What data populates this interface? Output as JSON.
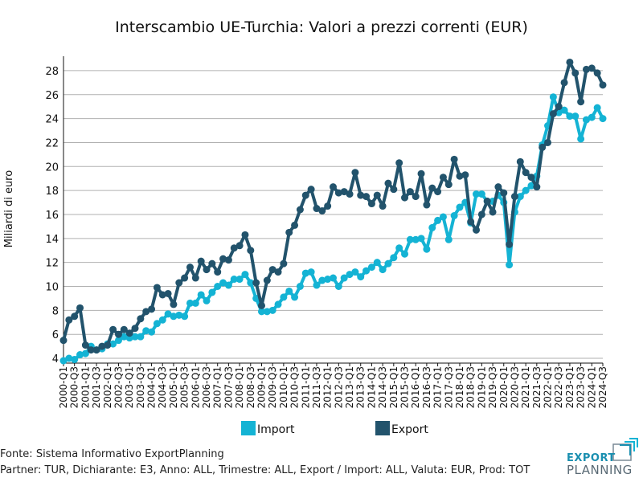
{
  "chart_data": {
    "type": "line",
    "title": "Interscambio UE-Turchia: Valori a prezzi correnti (EUR)",
    "xlabel": "",
    "ylabel": "Miliardi di euro",
    "ylim": [
      3.6,
      29.2
    ],
    "yticks": [
      4,
      6,
      8,
      10,
      12,
      14,
      16,
      18,
      20,
      22,
      24,
      26,
      28
    ],
    "grid": true,
    "legend_position": "bottom-center",
    "tick_every": 2,
    "x": [
      "2000-Q1",
      "2000-Q2",
      "2000-Q3",
      "2000-Q4",
      "2001-Q1",
      "2001-Q2",
      "2001-Q3",
      "2001-Q4",
      "2002-Q1",
      "2002-Q2",
      "2002-Q3",
      "2002-Q4",
      "2003-Q1",
      "2003-Q2",
      "2003-Q3",
      "2003-Q4",
      "2004-Q1",
      "2004-Q2",
      "2004-Q3",
      "2004-Q4",
      "2005-Q1",
      "2005-Q2",
      "2005-Q3",
      "2005-Q4",
      "2006-Q1",
      "2006-Q2",
      "2006-Q3",
      "2006-Q4",
      "2007-Q1",
      "2007-Q2",
      "2007-Q3",
      "2007-Q4",
      "2008-Q1",
      "2008-Q2",
      "2008-Q3",
      "2008-Q4",
      "2009-Q1",
      "2009-Q2",
      "2009-Q3",
      "2009-Q4",
      "2010-Q1",
      "2010-Q2",
      "2010-Q3",
      "2010-Q4",
      "2011-Q1",
      "2011-Q2",
      "2011-Q3",
      "2011-Q4",
      "2012-Q1",
      "2012-Q2",
      "2012-Q3",
      "2012-Q4",
      "2013-Q1",
      "2013-Q2",
      "2013-Q3",
      "2013-Q4",
      "2014-Q1",
      "2014-Q2",
      "2014-Q3",
      "2014-Q4",
      "2015-Q1",
      "2015-Q2",
      "2015-Q3",
      "2015-Q4",
      "2016-Q1",
      "2016-Q2",
      "2016-Q3",
      "2016-Q4",
      "2017-Q1",
      "2017-Q2",
      "2017-Q3",
      "2017-Q4",
      "2018-Q1",
      "2018-Q2",
      "2018-Q3",
      "2018-Q4",
      "2019-Q1",
      "2019-Q2",
      "2019-Q3",
      "2019-Q4",
      "2020-Q1",
      "2020-Q2",
      "2020-Q3",
      "2020-Q4",
      "2021-Q1",
      "2021-Q2",
      "2021-Q3",
      "2021-Q4",
      "2022-Q1",
      "2022-Q2",
      "2022-Q3",
      "2022-Q4",
      "2023-Q1",
      "2023-Q2",
      "2023-Q3",
      "2023-Q4",
      "2024-Q1",
      "2024-Q2",
      "2024-Q3"
    ],
    "series": [
      {
        "name": "Import",
        "color": "#14b3d4",
        "values": [
          3.8,
          4.0,
          3.9,
          4.3,
          4.4,
          5.0,
          4.7,
          4.8,
          5.2,
          5.2,
          5.5,
          5.8,
          5.7,
          5.8,
          5.8,
          6.3,
          6.2,
          6.9,
          7.2,
          7.7,
          7.5,
          7.6,
          7.5,
          8.6,
          8.6,
          9.3,
          8.8,
          9.5,
          10.0,
          10.3,
          10.1,
          10.6,
          10.6,
          11.0,
          10.3,
          9.0,
          7.9,
          7.9,
          8.0,
          8.5,
          9.1,
          9.6,
          9.1,
          10.0,
          11.1,
          11.2,
          10.1,
          10.5,
          10.6,
          10.7,
          10.0,
          10.7,
          11.0,
          11.2,
          10.8,
          11.3,
          11.6,
          12.0,
          11.4,
          11.9,
          12.4,
          13.2,
          12.7,
          13.9,
          13.9,
          14.0,
          13.1,
          14.9,
          15.5,
          15.8,
          13.9,
          15.9,
          16.6,
          17.0,
          15.3,
          17.7,
          17.7,
          17.1,
          17.1,
          17.6,
          17.0,
          11.8,
          16.2,
          17.5,
          18.0,
          18.4,
          19.2,
          21.8,
          23.4,
          25.8,
          24.5,
          24.7,
          24.2,
          24.2,
          22.3,
          23.9,
          24.1,
          24.9,
          24.0
        ]
      },
      {
        "name": "Export",
        "color": "#22536c",
        "values": [
          5.5,
          7.2,
          7.5,
          8.2,
          5.1,
          4.7,
          4.7,
          5.0,
          5.1,
          6.4,
          6.0,
          6.4,
          6.1,
          6.5,
          7.3,
          7.9,
          8.1,
          9.9,
          9.3,
          9.4,
          8.5,
          10.3,
          10.7,
          11.6,
          10.7,
          12.1,
          11.4,
          11.9,
          11.2,
          12.3,
          12.2,
          13.2,
          13.4,
          14.3,
          13.0,
          10.3,
          8.4,
          10.5,
          11.4,
          11.2,
          11.9,
          14.5,
          15.1,
          16.4,
          17.6,
          18.1,
          16.5,
          16.3,
          16.7,
          18.3,
          17.8,
          17.9,
          17.7,
          19.5,
          17.6,
          17.5,
          16.9,
          17.6,
          16.7,
          18.6,
          18.1,
          20.3,
          17.4,
          17.9,
          17.5,
          19.4,
          16.8,
          18.2,
          17.9,
          19.1,
          18.5,
          20.6,
          19.2,
          19.3,
          15.4,
          14.7,
          16.0,
          17.1,
          16.2,
          18.3,
          17.8,
          13.5,
          17.5,
          20.4,
          19.5,
          19.1,
          18.3,
          21.6,
          22.0,
          24.4,
          25.0,
          27.0,
          28.7,
          27.8,
          25.4,
          28.1,
          28.2,
          27.8,
          26.8
        ]
      }
    ]
  },
  "footer": {
    "source": "Fonte: Sistema Informativo ExportPlanning",
    "params": "Partner: TUR, Dichiarante: E3, Anno: ALL, Trimestre: ALL, Export / Import: ALL, Valuta: EUR, Prod: TOT"
  },
  "logo": {
    "line1": "EXPORT",
    "line2": "PLANNING"
  }
}
